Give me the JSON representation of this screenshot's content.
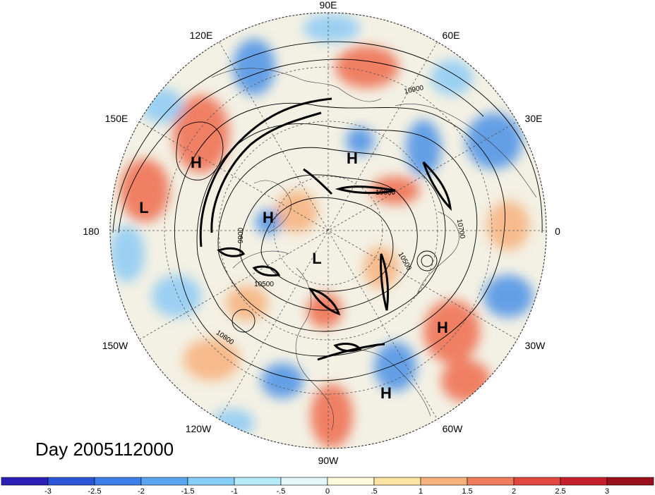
{
  "title": "Day 2005112000",
  "longitude_labels": [
    "90E",
    "60E",
    "30E",
    "0",
    "30W",
    "60W",
    "90W",
    "120W",
    "150W",
    "180",
    "150E",
    "120E"
  ],
  "pressure_systems": [
    "H",
    "H",
    "H",
    "H",
    "H",
    "L",
    "L"
  ],
  "contour_labels": [
    "10900",
    "10000",
    "10700",
    "10500",
    "9900",
    "10500",
    "10800"
  ],
  "colorbar": {
    "ticks": [
      "-3",
      "-2.5",
      "-2",
      "-1.5",
      "-1",
      "-.5",
      "0",
      ".5",
      "1",
      "1.5",
      "2",
      "2.5",
      "3"
    ],
    "colors": [
      "#2c1fb8",
      "#2a55d6",
      "#3d7fe8",
      "#5aa5f0",
      "#86cdf7",
      "#b6ecf9",
      "#e4f8fb",
      "#fffadc",
      "#fbe3a4",
      "#f6b27c",
      "#ef7c5c",
      "#e0473f",
      "#c41f2a",
      "#9b0f1c"
    ]
  },
  "field_colors": {
    "background_fill": "#f1f0e6",
    "warm": "#f06a4e",
    "cool": "#4d93e6"
  }
}
